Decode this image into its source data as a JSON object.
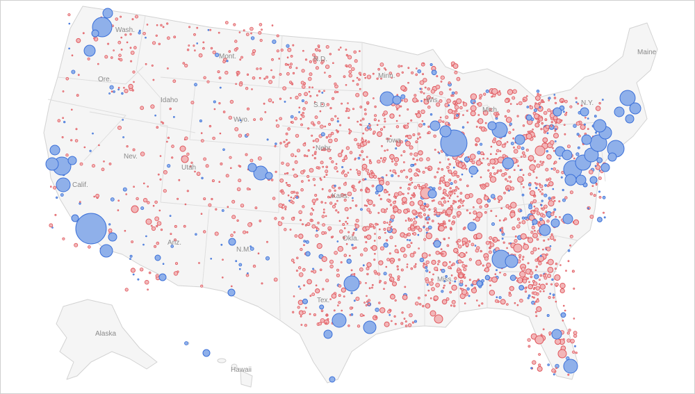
{
  "map": {
    "colors": {
      "republican": "#e0575d",
      "republican_fill": "#f2b6b8",
      "democrat": "#3a6fd8",
      "democrat_fill": "#8fb0ea",
      "land": "#f5f5f5",
      "border": "#d2d2d2"
    },
    "state_labels": {
      "wash": "Wash.",
      "ore": "Ore.",
      "calif": "Calif.",
      "nev": "Nev.",
      "idaho": "Idaho",
      "mont": "Mont.",
      "wyo": "Wyo.",
      "utah": "Utah",
      "ariz": "Ariz.",
      "nm": "N.M.",
      "nd": "N.D.",
      "sd": "S.D.",
      "nebr": "Nebr.",
      "kans": "Kans.",
      "okla": "Okla.",
      "tex": "Tex.",
      "minn": "Minn.",
      "iowa": "Iowa",
      "wis": "Wis.",
      "mich": "Mich.",
      "miss": "Miss.",
      "ny": "N.Y.",
      "maine": "Maine",
      "alaska": "Alaska",
      "hawaii": "Hawaii"
    }
  }
}
